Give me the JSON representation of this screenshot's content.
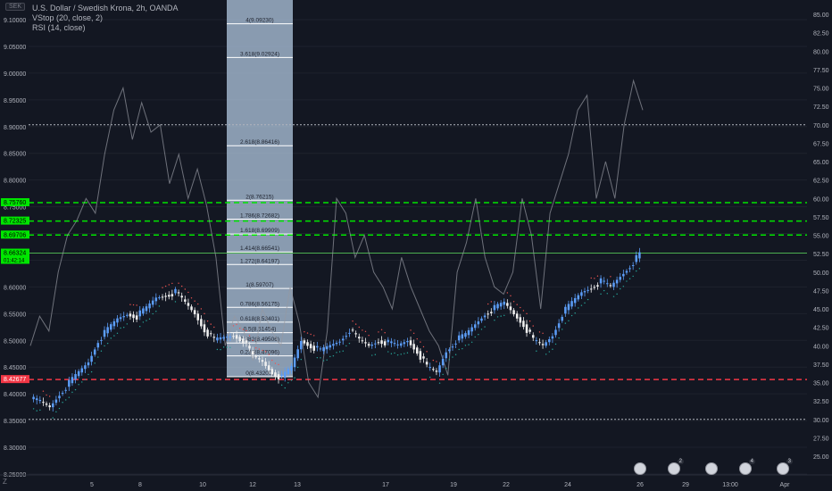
{
  "legend": {
    "symbol": "U.S. Dollar / Swedish Krona, 2h, OANDA",
    "ind1": "VStop (20, close, 2)",
    "ind2": "RSI (14, close)"
  },
  "currency_tag": "SEK",
  "zoom_mark": "Z",
  "colors": {
    "bg": "#131722",
    "up": "#5b9cf6",
    "down": "#f0f0f0",
    "fib_zone": "#b2c8e0",
    "green": "#00e600",
    "red": "#f23645",
    "rsi": "#9598a1",
    "grid": "#1e222d"
  },
  "left_axis": {
    "labels": [
      "9.10000",
      "9.05000",
      "9.00000",
      "8.95000",
      "8.90000",
      "8.85000",
      "8.80000",
      "8.75000",
      "8.70000",
      "8.65000",
      "8.60000",
      "8.55000",
      "8.50000",
      "8.45000",
      "8.40000",
      "8.35000",
      "8.30000",
      "8.25000"
    ],
    "values": [
      9.1,
      9.05,
      9.0,
      8.95,
      8.9,
      8.85,
      8.8,
      8.75,
      8.7,
      8.65,
      8.6,
      8.55,
      8.5,
      8.45,
      8.4,
      8.35,
      8.3,
      8.25
    ],
    "tags": [
      {
        "text": "8.75760",
        "value": 8.7576,
        "color": "#00e600"
      },
      {
        "text": "8.72325",
        "value": 8.72325,
        "color": "#00e600"
      },
      {
        "text": "8.69706",
        "value": 8.69706,
        "color": "#00e600"
      },
      {
        "text": "8.66324",
        "value": 8.66324,
        "color": "#00e600",
        "sub": "01:42:14"
      },
      {
        "text": "8.42677",
        "value": 8.42677,
        "color": "#f23645"
      }
    ]
  },
  "right_axis": {
    "labels": [
      "85.00",
      "82.50",
      "80.00",
      "77.50",
      "75.00",
      "72.50",
      "70.00",
      "67.50",
      "65.00",
      "62.50",
      "60.00",
      "57.50",
      "55.00",
      "52.50",
      "50.00",
      "47.50",
      "45.00",
      "42.50",
      "40.00",
      "37.50",
      "35.00",
      "32.50",
      "30.00",
      "27.50",
      "25.00"
    ],
    "values": [
      85,
      82.5,
      80,
      77.5,
      75,
      72.5,
      70,
      67.5,
      65,
      62.5,
      60,
      57.5,
      55,
      52.5,
      50,
      47.5,
      45,
      42.5,
      40,
      37.5,
      35,
      32.5,
      30,
      27.5,
      25
    ]
  },
  "time_axis": [
    "5",
    "8",
    "10",
    "12",
    "13",
    "17",
    "19",
    "22",
    "24",
    "26",
    "29",
    "13:00",
    "Apr"
  ],
  "fib_levels": [
    {
      "label": "4(9.09230)",
      "value": 9.0923
    },
    {
      "label": "3.618(9.02924)",
      "value": 9.02924
    },
    {
      "label": "2.618(8.86416)",
      "value": 8.86416
    },
    {
      "label": "2(8.76215)",
      "value": 8.76215
    },
    {
      "label": "1.786(8.72682)",
      "value": 8.72682
    },
    {
      "label": "1.618(8.69909)",
      "value": 8.69909
    },
    {
      "label": "1.414(8.66541)",
      "value": 8.66541
    },
    {
      "label": "1.272(8.64197)",
      "value": 8.64197
    },
    {
      "label": "1(8.59707)",
      "value": 8.59707
    },
    {
      "label": "0.786(8.56175)",
      "value": 8.56175
    },
    {
      "label": "0.618(8.53401)",
      "value": 8.53401
    },
    {
      "label": "0.5(8.51454)",
      "value": 8.51454
    },
    {
      "label": "0.382(8.49506)",
      "value": 8.49506
    },
    {
      "label": "0.236(8.47096)",
      "value": 8.47096
    },
    {
      "label": "0(8.43200)",
      "value": 8.432
    }
  ],
  "horizontal_lines": [
    {
      "value": 8.7576,
      "color": "#00e600",
      "style": "dashed"
    },
    {
      "value": 8.72325,
      "color": "#00e600",
      "style": "dashed"
    },
    {
      "value": 8.69706,
      "color": "#00e600",
      "style": "dashed"
    },
    {
      "value": 8.66324,
      "color": "#4caf50",
      "style": "solid"
    },
    {
      "value": 8.42677,
      "color": "#f23645",
      "style": "dashed"
    }
  ],
  "rsi_levels": [
    70,
    30
  ],
  "events": [
    {
      "count": "",
      "pos": 0
    },
    {
      "count": "2",
      "pos": 1
    },
    {
      "count": "",
      "pos": 2
    },
    {
      "count": "4",
      "pos": 3
    },
    {
      "count": "3",
      "pos": 4
    }
  ],
  "chart_data": {
    "type": "line",
    "price_path": [
      8.39,
      8.385,
      8.375,
      8.4,
      8.42,
      8.44,
      8.46,
      8.5,
      8.52,
      8.54,
      8.55,
      8.545,
      8.56,
      8.58,
      8.585,
      8.59,
      8.57,
      8.55,
      8.52,
      8.5,
      8.505,
      8.51,
      8.5,
      8.47,
      8.46,
      8.44,
      8.43,
      8.45,
      8.5,
      8.49,
      8.48,
      8.49,
      8.5,
      8.52,
      8.5,
      8.49,
      8.5,
      8.495,
      8.49,
      8.5,
      8.48,
      8.45,
      8.44,
      8.48,
      8.5,
      8.51,
      8.53,
      8.55,
      8.56,
      8.57,
      8.55,
      8.53,
      8.5,
      8.49,
      8.51,
      8.55,
      8.57,
      8.59,
      8.6,
      8.61,
      8.6,
      8.62,
      8.64,
      8.66
    ],
    "rsi_path": [
      40,
      44,
      42,
      50,
      55,
      57,
      60,
      58,
      66,
      72,
      75,
      68,
      73,
      69,
      70,
      62,
      66,
      60,
      64,
      59,
      52,
      40,
      44,
      42,
      38,
      45,
      42,
      40,
      48,
      43,
      35,
      33,
      42,
      60,
      58,
      52,
      55,
      50,
      48,
      45,
      52,
      48,
      45,
      42,
      40,
      36,
      50,
      54,
      60,
      52,
      48,
      47,
      50,
      60,
      55,
      45,
      58,
      62,
      66,
      72,
      74,
      60,
      65,
      60,
      70,
      76,
      72
    ]
  }
}
